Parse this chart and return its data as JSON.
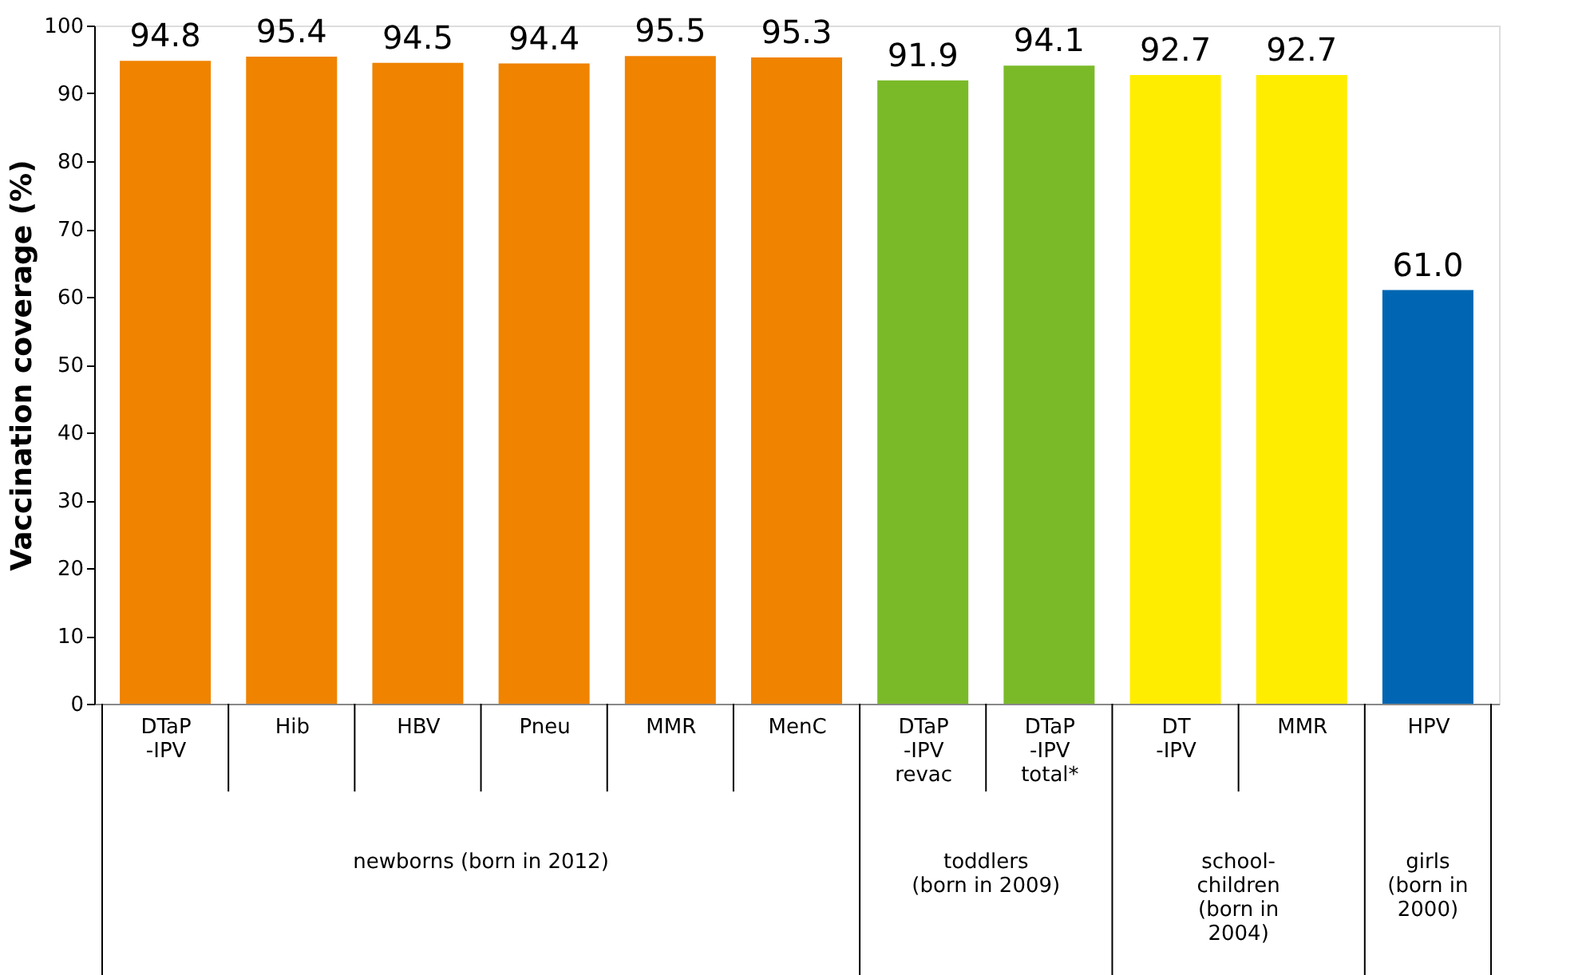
{
  "chart_data": {
    "type": "bar",
    "ylabel": "Vaccination coverage (%)",
    "categories": [
      "DTaP\n-IPV",
      "Hib",
      "HBV",
      "Pneu",
      "MMR",
      "MenC",
      "DTaP\n-IPV\nrevac",
      "DTaP\n-IPV\ntotal*",
      "DT\n-IPV",
      "MMR",
      "HPV"
    ],
    "values": [
      94.8,
      95.4,
      94.5,
      94.4,
      95.5,
      95.3,
      91.9,
      94.1,
      92.7,
      92.7,
      61.0
    ],
    "colors": [
      "#f08300",
      "#f08300",
      "#f08300",
      "#f08300",
      "#f08300",
      "#f08300",
      "#7aba28",
      "#7aba28",
      "#ffed00",
      "#ffed00",
      "#0066b3"
    ],
    "ylim": [
      0,
      100
    ],
    "yticks": [
      0,
      10,
      20,
      30,
      40,
      50,
      60,
      70,
      80,
      90,
      100
    ],
    "grid": false,
    "value_labels": [
      "94.8",
      "95.4",
      "94.5",
      "94.4",
      "95.5",
      "95.3",
      "91.9",
      "94.1",
      "92.7",
      "92.7",
      "61.0"
    ],
    "annotations": [
      "newborns (born in 2012)",
      "toddlers\n(born in 2009)",
      "school-\nchildren\n(born in\n2004)",
      "girls\n(born in\n2000)"
    ]
  }
}
